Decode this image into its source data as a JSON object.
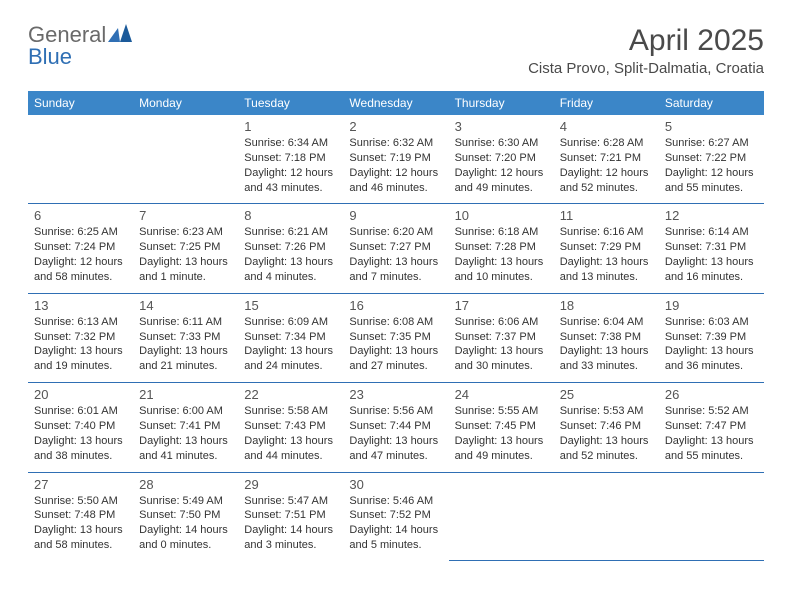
{
  "logo": {
    "text1": "General",
    "text2": "Blue"
  },
  "title": "April 2025",
  "location": "Cista Provo, Split-Dalmatia, Croatia",
  "colors": {
    "header_bg": "#3b86c8",
    "header_text": "#ffffff",
    "row_border": "#2f6fb4",
    "body_text": "#333333",
    "title_text": "#4a4a4a",
    "logo_gray": "#6a6a6a",
    "logo_blue": "#2f6fb4",
    "background": "#ffffff"
  },
  "day_headers": [
    "Sunday",
    "Monday",
    "Tuesday",
    "Wednesday",
    "Thursday",
    "Friday",
    "Saturday"
  ],
  "weeks": [
    [
      null,
      null,
      {
        "n": "1",
        "sr": "Sunrise: 6:34 AM",
        "ss": "Sunset: 7:18 PM",
        "dl1": "Daylight: 12 hours",
        "dl2": "and 43 minutes."
      },
      {
        "n": "2",
        "sr": "Sunrise: 6:32 AM",
        "ss": "Sunset: 7:19 PM",
        "dl1": "Daylight: 12 hours",
        "dl2": "and 46 minutes."
      },
      {
        "n": "3",
        "sr": "Sunrise: 6:30 AM",
        "ss": "Sunset: 7:20 PM",
        "dl1": "Daylight: 12 hours",
        "dl2": "and 49 minutes."
      },
      {
        "n": "4",
        "sr": "Sunrise: 6:28 AM",
        "ss": "Sunset: 7:21 PM",
        "dl1": "Daylight: 12 hours",
        "dl2": "and 52 minutes."
      },
      {
        "n": "5",
        "sr": "Sunrise: 6:27 AM",
        "ss": "Sunset: 7:22 PM",
        "dl1": "Daylight: 12 hours",
        "dl2": "and 55 minutes."
      }
    ],
    [
      {
        "n": "6",
        "sr": "Sunrise: 6:25 AM",
        "ss": "Sunset: 7:24 PM",
        "dl1": "Daylight: 12 hours",
        "dl2": "and 58 minutes."
      },
      {
        "n": "7",
        "sr": "Sunrise: 6:23 AM",
        "ss": "Sunset: 7:25 PM",
        "dl1": "Daylight: 13 hours",
        "dl2": "and 1 minute."
      },
      {
        "n": "8",
        "sr": "Sunrise: 6:21 AM",
        "ss": "Sunset: 7:26 PM",
        "dl1": "Daylight: 13 hours",
        "dl2": "and 4 minutes."
      },
      {
        "n": "9",
        "sr": "Sunrise: 6:20 AM",
        "ss": "Sunset: 7:27 PM",
        "dl1": "Daylight: 13 hours",
        "dl2": "and 7 minutes."
      },
      {
        "n": "10",
        "sr": "Sunrise: 6:18 AM",
        "ss": "Sunset: 7:28 PM",
        "dl1": "Daylight: 13 hours",
        "dl2": "and 10 minutes."
      },
      {
        "n": "11",
        "sr": "Sunrise: 6:16 AM",
        "ss": "Sunset: 7:29 PM",
        "dl1": "Daylight: 13 hours",
        "dl2": "and 13 minutes."
      },
      {
        "n": "12",
        "sr": "Sunrise: 6:14 AM",
        "ss": "Sunset: 7:31 PM",
        "dl1": "Daylight: 13 hours",
        "dl2": "and 16 minutes."
      }
    ],
    [
      {
        "n": "13",
        "sr": "Sunrise: 6:13 AM",
        "ss": "Sunset: 7:32 PM",
        "dl1": "Daylight: 13 hours",
        "dl2": "and 19 minutes."
      },
      {
        "n": "14",
        "sr": "Sunrise: 6:11 AM",
        "ss": "Sunset: 7:33 PM",
        "dl1": "Daylight: 13 hours",
        "dl2": "and 21 minutes."
      },
      {
        "n": "15",
        "sr": "Sunrise: 6:09 AM",
        "ss": "Sunset: 7:34 PM",
        "dl1": "Daylight: 13 hours",
        "dl2": "and 24 minutes."
      },
      {
        "n": "16",
        "sr": "Sunrise: 6:08 AM",
        "ss": "Sunset: 7:35 PM",
        "dl1": "Daylight: 13 hours",
        "dl2": "and 27 minutes."
      },
      {
        "n": "17",
        "sr": "Sunrise: 6:06 AM",
        "ss": "Sunset: 7:37 PM",
        "dl1": "Daylight: 13 hours",
        "dl2": "and 30 minutes."
      },
      {
        "n": "18",
        "sr": "Sunrise: 6:04 AM",
        "ss": "Sunset: 7:38 PM",
        "dl1": "Daylight: 13 hours",
        "dl2": "and 33 minutes."
      },
      {
        "n": "19",
        "sr": "Sunrise: 6:03 AM",
        "ss": "Sunset: 7:39 PM",
        "dl1": "Daylight: 13 hours",
        "dl2": "and 36 minutes."
      }
    ],
    [
      {
        "n": "20",
        "sr": "Sunrise: 6:01 AM",
        "ss": "Sunset: 7:40 PM",
        "dl1": "Daylight: 13 hours",
        "dl2": "and 38 minutes."
      },
      {
        "n": "21",
        "sr": "Sunrise: 6:00 AM",
        "ss": "Sunset: 7:41 PM",
        "dl1": "Daylight: 13 hours",
        "dl2": "and 41 minutes."
      },
      {
        "n": "22",
        "sr": "Sunrise: 5:58 AM",
        "ss": "Sunset: 7:43 PM",
        "dl1": "Daylight: 13 hours",
        "dl2": "and 44 minutes."
      },
      {
        "n": "23",
        "sr": "Sunrise: 5:56 AM",
        "ss": "Sunset: 7:44 PM",
        "dl1": "Daylight: 13 hours",
        "dl2": "and 47 minutes."
      },
      {
        "n": "24",
        "sr": "Sunrise: 5:55 AM",
        "ss": "Sunset: 7:45 PM",
        "dl1": "Daylight: 13 hours",
        "dl2": "and 49 minutes."
      },
      {
        "n": "25",
        "sr": "Sunrise: 5:53 AM",
        "ss": "Sunset: 7:46 PM",
        "dl1": "Daylight: 13 hours",
        "dl2": "and 52 minutes."
      },
      {
        "n": "26",
        "sr": "Sunrise: 5:52 AM",
        "ss": "Sunset: 7:47 PM",
        "dl1": "Daylight: 13 hours",
        "dl2": "and 55 minutes."
      }
    ],
    [
      {
        "n": "27",
        "sr": "Sunrise: 5:50 AM",
        "ss": "Sunset: 7:48 PM",
        "dl1": "Daylight: 13 hours",
        "dl2": "and 58 minutes."
      },
      {
        "n": "28",
        "sr": "Sunrise: 5:49 AM",
        "ss": "Sunset: 7:50 PM",
        "dl1": "Daylight: 14 hours",
        "dl2": "and 0 minutes."
      },
      {
        "n": "29",
        "sr": "Sunrise: 5:47 AM",
        "ss": "Sunset: 7:51 PM",
        "dl1": "Daylight: 14 hours",
        "dl2": "and 3 minutes."
      },
      {
        "n": "30",
        "sr": "Sunrise: 5:46 AM",
        "ss": "Sunset: 7:52 PM",
        "dl1": "Daylight: 14 hours",
        "dl2": "and 5 minutes."
      },
      null,
      null,
      null
    ]
  ]
}
